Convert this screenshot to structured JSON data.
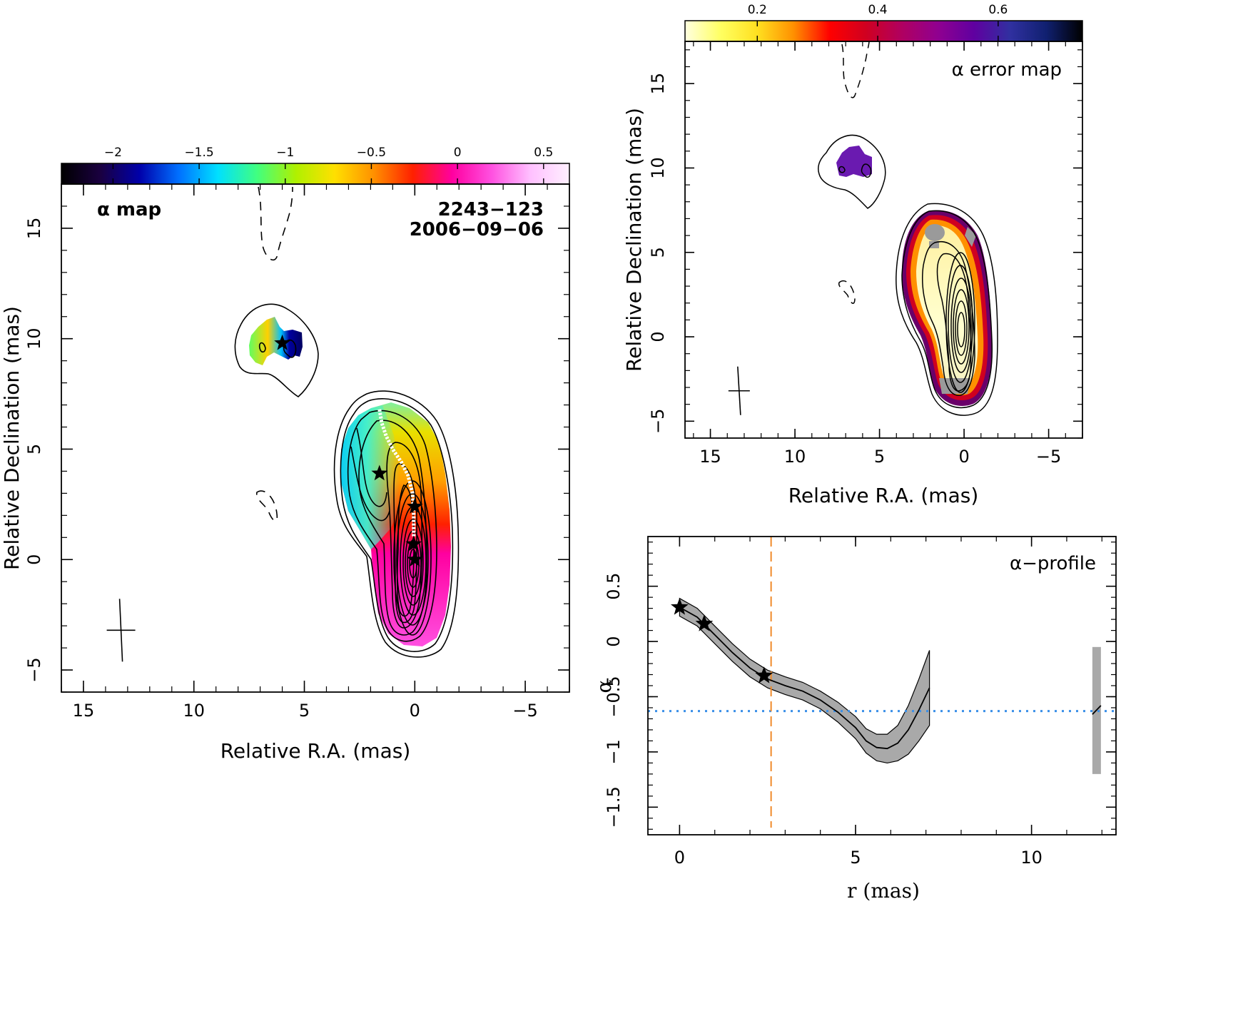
{
  "colors": {
    "alpha_rainbow": [
      "#000000",
      "#1a0040",
      "#0000aa",
      "#0070ff",
      "#00e0ff",
      "#40ff80",
      "#b0f000",
      "#ffe000",
      "#ff9000",
      "#ff2000",
      "#ff00a0",
      "#ff50e0",
      "#ffc0ff",
      "#fff0ff"
    ],
    "error_map": [
      "#ffffe0",
      "#ffff60",
      "#ffe020",
      "#ff9000",
      "#ff0000",
      "#d00020",
      "#b00060",
      "#900090",
      "#6000a0",
      "#3030a0",
      "#102070",
      "#000000"
    ],
    "reference_line": "#3a8fe8",
    "core_marker_line": "#f08a2a",
    "band_fill": "#a9a9a9",
    "ridge": "#ffffff"
  },
  "icons": {
    "component_marker": "star-icon",
    "beam_marker": "cross-icon"
  },
  "chart_data": [
    {
      "id": "alpha_map",
      "type": "heatmap",
      "title": "α map",
      "source": "2243−123",
      "epoch": "2006−09−06",
      "xlabel": "Relative R.A. (mas)",
      "ylabel": "Relative Declination (mas)",
      "xlim": [
        16,
        -7
      ],
      "ylim": [
        -6,
        17
      ],
      "xticks": [
        15,
        10,
        5,
        0,
        -5
      ],
      "yticks": [
        -5,
        0,
        5,
        10,
        15
      ],
      "xtick_labels": [
        "15",
        "10",
        "5",
        "0",
        "−5"
      ],
      "ytick_labels": [
        "−5",
        "0",
        "5",
        "10",
        "15"
      ],
      "colorbar": {
        "range": [
          -2.3,
          0.65
        ],
        "ticks": [
          -2,
          -1.5,
          -1,
          -0.5,
          0,
          0.5
        ],
        "labels": [
          "−2",
          "−1.5",
          "−1",
          "−0.5",
          "0",
          "0.5"
        ]
      },
      "components": [
        {
          "ra": 6.0,
          "dec": 9.8
        },
        {
          "ra": 1.6,
          "dec": 3.9
        },
        {
          "ra": 0.0,
          "dec": 2.4
        },
        {
          "ra": 0.05,
          "dec": 0.7
        },
        {
          "ra": 0.0,
          "dec": 0.0
        }
      ],
      "ridge_line": [
        {
          "ra": 1.6,
          "dec": 6.8
        },
        {
          "ra": 1.5,
          "dec": 6.2
        },
        {
          "ra": 1.3,
          "dec": 5.6
        },
        {
          "ra": 1.0,
          "dec": 5.0
        },
        {
          "ra": 0.6,
          "dec": 4.4
        },
        {
          "ra": 0.3,
          "dec": 3.8
        },
        {
          "ra": 0.1,
          "dec": 3.0
        },
        {
          "ra": 0.05,
          "dec": 2.0
        },
        {
          "ra": 0.05,
          "dec": 1.0
        }
      ],
      "beam": {
        "ra": 13.3,
        "dec": -3.2
      }
    },
    {
      "id": "alpha_error_map",
      "type": "heatmap",
      "title": "α error map",
      "xlabel": "Relative R.A. (mas)",
      "ylabel": "Relative Declination (mas)",
      "xlim": [
        16.5,
        -7
      ],
      "ylim": [
        -6,
        17.5
      ],
      "xticks": [
        15,
        10,
        5,
        0,
        -5
      ],
      "yticks": [
        -5,
        0,
        5,
        10,
        15
      ],
      "xtick_labels": [
        "15",
        "10",
        "5",
        "0",
        "−5"
      ],
      "ytick_labels": [
        "−5",
        "0",
        "5",
        "10",
        "15"
      ],
      "colorbar": {
        "range": [
          0.08,
          0.74
        ],
        "ticks": [
          0.2,
          0.4,
          0.6
        ],
        "labels": [
          "0.2",
          "0.4",
          "0.6"
        ]
      },
      "beam": {
        "ra": 13.3,
        "dec": -3.2
      }
    },
    {
      "id": "alpha_profile",
      "type": "line",
      "title": "α−profile",
      "xlabel": "r (mas)",
      "ylabel": "α",
      "xlim": [
        -0.9,
        12.4
      ],
      "ylim": [
        -1.75,
        0.95
      ],
      "xticks": [
        0,
        5,
        10
      ],
      "yticks": [
        -1.5,
        -1,
        -0.5,
        0,
        0.5
      ],
      "xtick_labels": [
        "0",
        "5",
        "10"
      ],
      "ytick_labels": [
        "−1.5",
        "−1",
        "−0.5",
        "0",
        "0.5"
      ],
      "series": [
        {
          "x": [
            0.0,
            0.5,
            1.0,
            1.5,
            2.0,
            2.5,
            3.0,
            3.5,
            4.0,
            4.5,
            5.0,
            5.3,
            5.6,
            5.9,
            6.2,
            6.5,
            6.8,
            7.1
          ],
          "values": [
            0.31,
            0.22,
            0.06,
            -0.1,
            -0.24,
            -0.34,
            -0.4,
            -0.45,
            -0.53,
            -0.64,
            -0.78,
            -0.9,
            -0.96,
            -0.97,
            -0.92,
            -0.8,
            -0.62,
            -0.42
          ],
          "err": [
            0.08,
            0.08,
            0.08,
            0.08,
            0.08,
            0.08,
            0.08,
            0.08,
            0.08,
            0.09,
            0.1,
            0.11,
            0.12,
            0.13,
            0.16,
            0.22,
            0.28,
            0.34
          ]
        }
      ],
      "isolated_segment": {
        "x": 11.85,
        "values": [
          -0.66,
          -0.58
        ],
        "band": [
          -1.2,
          -0.05
        ]
      },
      "components": [
        {
          "r": 0.0,
          "alpha": 0.31
        },
        {
          "r": 0.7,
          "alpha": 0.16
        },
        {
          "r": 2.4,
          "alpha": -0.31
        }
      ],
      "reference_alpha": -0.63,
      "core_r": 2.6
    }
  ]
}
